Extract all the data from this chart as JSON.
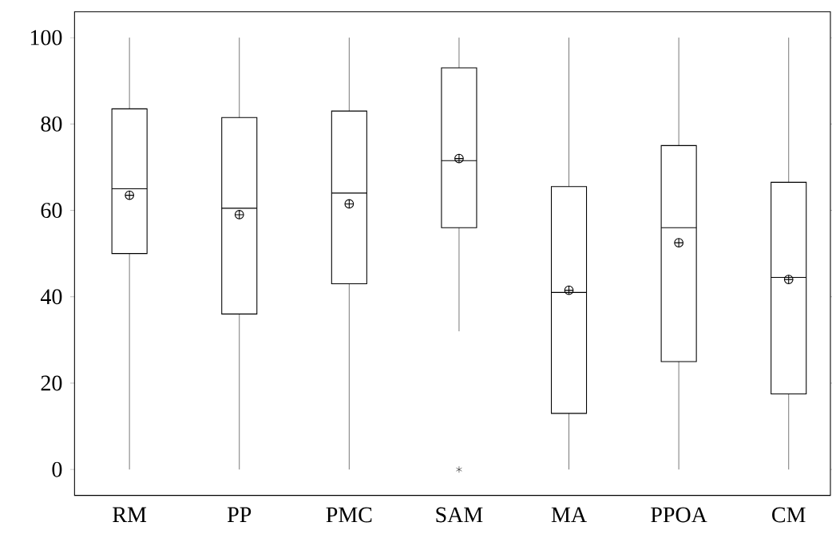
{
  "chart_data": {
    "type": "box",
    "categories": [
      "RM",
      "PP",
      "PMC",
      "SAM",
      "MA",
      "PPOA",
      "CM"
    ],
    "boxes": [
      {
        "low": 0,
        "q1": 50,
        "median": 65,
        "q3": 83.5,
        "high": 100,
        "mean": 63.5
      },
      {
        "low": 0,
        "q1": 36,
        "median": 60.5,
        "q3": 81.5,
        "high": 100,
        "mean": 59
      },
      {
        "low": 0,
        "q1": 43,
        "median": 64,
        "q3": 83,
        "high": 100,
        "mean": 61.5
      },
      {
        "low": 32,
        "q1": 56,
        "median": 71.5,
        "q3": 93,
        "high": 100,
        "mean": 72,
        "outliers": [
          0
        ]
      },
      {
        "low": 0,
        "q1": 13,
        "median": 41,
        "q3": 65.5,
        "high": 100,
        "mean": 41.5
      },
      {
        "low": 0,
        "q1": 25,
        "median": 56,
        "q3": 75,
        "high": 100,
        "mean": 52.5
      },
      {
        "low": 0,
        "q1": 17.5,
        "median": 44.5,
        "q3": 66.5,
        "high": 100,
        "mean": 44
      }
    ],
    "ylim": [
      -6,
      106
    ],
    "yticks": [
      0,
      20,
      40,
      60,
      80,
      100
    ]
  }
}
